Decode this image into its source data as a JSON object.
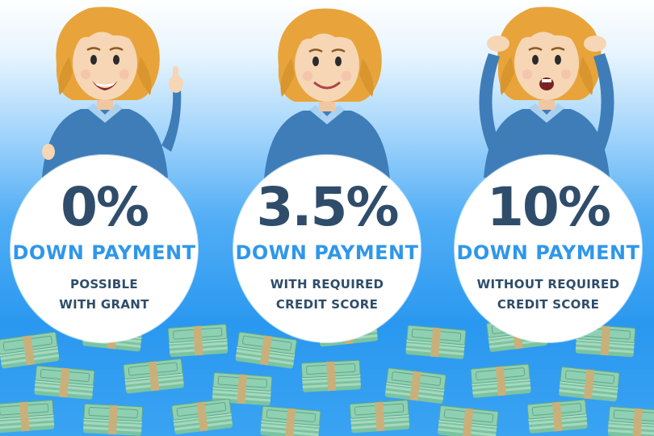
{
  "cards": [
    {
      "percent": "0%",
      "label": "DOWN PAYMENT",
      "line1": "POSSIBLE",
      "line2": "WITH GRANT",
      "expression": "happy"
    },
    {
      "percent": "3.5%",
      "label": "DOWN PAYMENT",
      "line1": "WITH REQUIRED",
      "line2": "CREDIT SCORE",
      "expression": "smiling"
    },
    {
      "percent": "10%",
      "label": "DOWN PAYMENT",
      "line1": "WITHOUT REQUIRED",
      "line2": "CREDIT SCORE",
      "expression": "worried"
    }
  ],
  "colors": {
    "dark_text": "#2f4d6a",
    "accent_text": "#2f97ea",
    "hair": "#e8a43a",
    "skin": "#f6d6b4",
    "shirt": "#3f7db9",
    "money": "#8fd0b2"
  },
  "icons": [
    "woman-happy-illustration",
    "woman-smiling-illustration",
    "woman-worried-illustration",
    "money-stacks-illustration"
  ]
}
